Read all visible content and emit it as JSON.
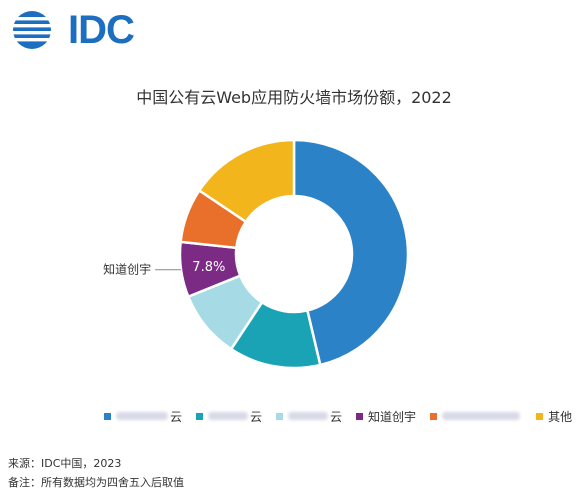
{
  "brand": {
    "logo_text": "IDC",
    "logo_color": "#1c6fc0"
  },
  "chart_data": {
    "type": "pie",
    "title": "中国公有云Web应用防火墙市场份额，2022",
    "donut": true,
    "categories": [
      "云",
      "云",
      "云",
      "知道创宇",
      "",
      "其他"
    ],
    "values": [
      46.3,
      13.0,
      9.6,
      7.8,
      7.7,
      15.6
    ],
    "colors": [
      "#2b82c6",
      "#1aa3b5",
      "#a6dbe6",
      "#7c2b84",
      "#e8702a",
      "#f2b61c"
    ],
    "slice_labels": [
      "",
      "",
      "",
      "7.8%",
      "",
      ""
    ],
    "callout": "知道创宇",
    "legend": [
      "云",
      "云",
      "云",
      "知道创宇",
      "",
      "其他"
    ],
    "legend_placement": "bottom"
  },
  "footer": {
    "source": "来源：IDC中国，2023",
    "note": "备注：所有数据均为四舍五入后取值"
  }
}
